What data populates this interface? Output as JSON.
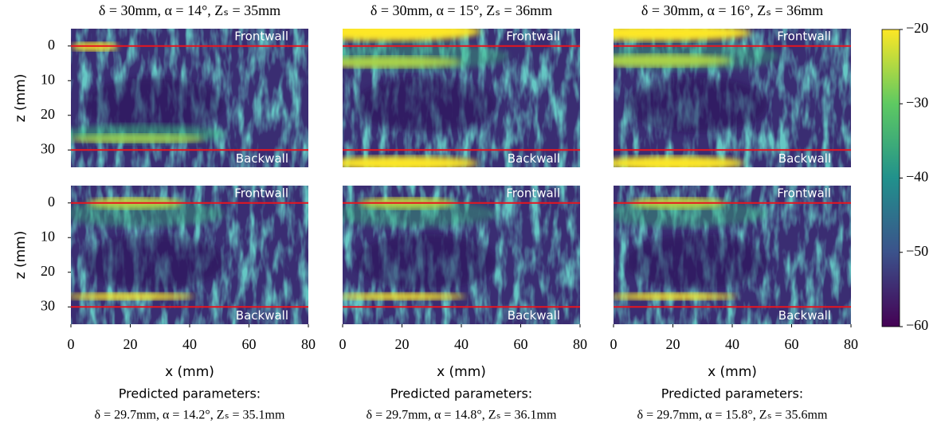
{
  "chart_data": [
    {
      "type": "image",
      "title": "δ = 30mm, α = 14°, Zₛ = 35mm",
      "ylabel": "z (mm)",
      "xlim": [
        0,
        80
      ],
      "ylim": [
        -5,
        35
      ],
      "yticks": [
        0,
        10,
        20,
        30
      ],
      "lines": [
        {
          "value": 0,
          "label": "Frontwall"
        },
        {
          "value": 30,
          "label": "Backwall"
        }
      ],
      "line_color": "#e8141e"
    },
    {
      "type": "image",
      "title": "δ = 30mm, α = 15°, Zₛ = 36mm",
      "xlim": [
        0,
        80
      ],
      "ylim": [
        -5,
        35
      ],
      "lines": [
        {
          "value": 0,
          "label": "Frontwall"
        },
        {
          "value": 30,
          "label": "Backwall"
        }
      ],
      "line_color": "#e8141e"
    },
    {
      "type": "image",
      "title": "δ = 30mm, α = 16°, Zₛ = 36mm",
      "xlim": [
        0,
        80
      ],
      "ylim": [
        -5,
        35
      ],
      "lines": [
        {
          "value": 0,
          "label": "Frontwall"
        },
        {
          "value": 30,
          "label": "Backwall"
        }
      ],
      "line_color": "#e8141e"
    },
    {
      "type": "image",
      "ylabel": "z (mm)",
      "xlabel": "x (mm)",
      "xlim": [
        0,
        80
      ],
      "ylim": [
        -5,
        35
      ],
      "xticks": [
        0,
        20,
        40,
        60,
        80
      ],
      "yticks": [
        0,
        10,
        20,
        30
      ],
      "lines": [
        {
          "value": 0,
          "label": "Frontwall"
        },
        {
          "value": 30,
          "label": "Backwall"
        }
      ],
      "line_color": "#e8141e",
      "notes": [
        "Predicted parameters:",
        "δ = 29.7mm, α = 14.2°, Zₛ = 35.1mm"
      ]
    },
    {
      "type": "image",
      "xlabel": "x (mm)",
      "xlim": [
        0,
        80
      ],
      "ylim": [
        -5,
        35
      ],
      "xticks": [
        0,
        20,
        40,
        60,
        80
      ],
      "lines": [
        {
          "value": 0,
          "label": "Frontwall"
        },
        {
          "value": 30,
          "label": "Backwall"
        }
      ],
      "line_color": "#e8141e",
      "notes": [
        "Predicted parameters:",
        "δ = 29.7mm, α = 14.8°, Zₛ = 36.1mm"
      ]
    },
    {
      "type": "image",
      "xlabel": "x (mm)",
      "xlim": [
        0,
        80
      ],
      "ylim": [
        -5,
        35
      ],
      "xticks": [
        0,
        20,
        40,
        60,
        80
      ],
      "lines": [
        {
          "value": 0,
          "label": "Frontwall"
        },
        {
          "value": 30,
          "label": "Backwall"
        }
      ],
      "line_color": "#e8141e",
      "notes": [
        "Predicted parameters:",
        "δ = 29.7mm, α = 15.8°, Zₛ = 35.6mm"
      ]
    },
    {
      "type": "colorbar",
      "ylim": [
        -60,
        -20
      ],
      "yticks": [
        {
          "value": -60,
          "label": "−60"
        },
        {
          "value": -50,
          "label": "−50"
        },
        {
          "value": -40,
          "label": "−40"
        },
        {
          "value": -30,
          "label": "−30"
        },
        {
          "value": -20,
          "label": "−20"
        }
      ]
    }
  ]
}
